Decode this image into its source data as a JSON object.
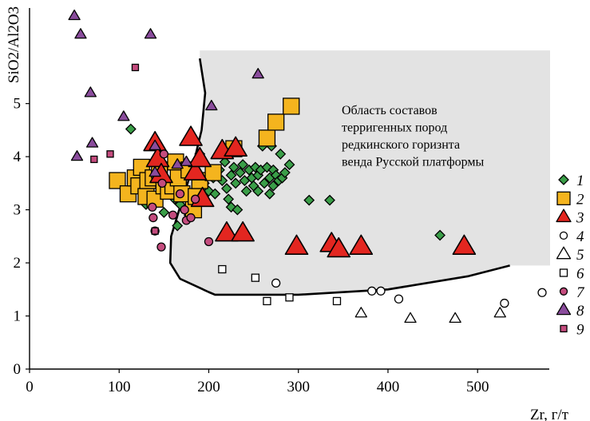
{
  "chart_data": {
    "type": "scatter",
    "title": "",
    "xlabel": "Zr, г/т",
    "ylabel": "SiO2/Al2O3",
    "xlim": [
      0,
      580
    ],
    "ylim": [
      0,
      6.8
    ],
    "x_ticks": [
      0,
      100,
      200,
      300,
      400,
      500
    ],
    "y_ticks": [
      0,
      1,
      2,
      3,
      4,
      5
    ],
    "grid": false,
    "legend_position": "right",
    "annotation": [
      "Область составов",
      "терригенных пород",
      "редкинского горизнта",
      "венда Русской платформы"
    ],
    "field": {
      "fill": "#e3e3e3",
      "rect": {
        "x": [
          190,
          585
        ],
        "y": [
          1.95,
          6.0
        ]
      },
      "boundary": [
        [
          190,
          5.85
        ],
        [
          196,
          5.2
        ],
        [
          192,
          4.5
        ],
        [
          182,
          3.8
        ],
        [
          167,
          3.0
        ],
        [
          158,
          2.5
        ],
        [
          157,
          2.0
        ],
        [
          168,
          1.7
        ],
        [
          200,
          1.45
        ],
        [
          207,
          1.4
        ],
        [
          300,
          1.4
        ],
        [
          400,
          1.5
        ],
        [
          490,
          1.75
        ],
        [
          536,
          1.95
        ]
      ]
    },
    "series": [
      {
        "name": "1",
        "marker": "diamond",
        "color": "#3a9e48",
        "size": 6,
        "points": [
          [
            113,
            4.52
          ],
          [
            143,
            3.6
          ],
          [
            148,
            3.85
          ],
          [
            150,
            2.95
          ],
          [
            160,
            3.35
          ],
          [
            162,
            3.2
          ],
          [
            165,
            2.7
          ],
          [
            168,
            3.1
          ],
          [
            170,
            3.65
          ],
          [
            175,
            3.85
          ],
          [
            178,
            2.9
          ],
          [
            180,
            3.75
          ],
          [
            180,
            3.2
          ],
          [
            188,
            3.95
          ],
          [
            190,
            4.05
          ],
          [
            195,
            3.5
          ],
          [
            200,
            3.35
          ],
          [
            205,
            3.6
          ],
          [
            207,
            3.3
          ],
          [
            212,
            3.75
          ],
          [
            215,
            3.55
          ],
          [
            218,
            3.9
          ],
          [
            220,
            3.4
          ],
          [
            222,
            3.2
          ],
          [
            225,
            3.65
          ],
          [
            225,
            3.05
          ],
          [
            228,
            3.8
          ],
          [
            230,
            3.5
          ],
          [
            232,
            3.0
          ],
          [
            235,
            3.7
          ],
          [
            238,
            3.85
          ],
          [
            240,
            3.55
          ],
          [
            242,
            3.35
          ],
          [
            245,
            3.75
          ],
          [
            248,
            3.6
          ],
          [
            250,
            3.45
          ],
          [
            252,
            3.8
          ],
          [
            255,
            3.65
          ],
          [
            255,
            3.35
          ],
          [
            258,
            3.75
          ],
          [
            260,
            4.2
          ],
          [
            262,
            3.5
          ],
          [
            265,
            3.8
          ],
          [
            268,
            3.6
          ],
          [
            268,
            3.3
          ],
          [
            270,
            4.2
          ],
          [
            272,
            3.75
          ],
          [
            272,
            3.45
          ],
          [
            275,
            3.65
          ],
          [
            278,
            3.55
          ],
          [
            280,
            4.05
          ],
          [
            282,
            3.6
          ],
          [
            285,
            3.7
          ],
          [
            290,
            3.85
          ],
          [
            312,
            3.18
          ],
          [
            335,
            3.18
          ],
          [
            458,
            2.52
          ],
          [
            130,
            3.1
          ],
          [
            138,
            3.25
          ]
        ]
      },
      {
        "name": "2",
        "marker": "square",
        "color": "#f4b41e",
        "size": 10,
        "points": [
          [
            98,
            3.55
          ],
          [
            110,
            3.3
          ],
          [
            118,
            3.6
          ],
          [
            122,
            3.45
          ],
          [
            125,
            3.8
          ],
          [
            130,
            3.25
          ],
          [
            132,
            3.55
          ],
          [
            138,
            3.6
          ],
          [
            140,
            3.2
          ],
          [
            145,
            3.75
          ],
          [
            150,
            3.45
          ],
          [
            155,
            3.35
          ],
          [
            160,
            3.45
          ],
          [
            163,
            3.9
          ],
          [
            166,
            3.6
          ],
          [
            170,
            3.3
          ],
          [
            178,
            3.75
          ],
          [
            183,
            3.0
          ],
          [
            186,
            3.25
          ],
          [
            190,
            3.55
          ],
          [
            205,
            3.7
          ],
          [
            228,
            4.15
          ],
          [
            265,
            4.35
          ],
          [
            275,
            4.65
          ],
          [
            292,
            4.95
          ]
        ]
      },
      {
        "name": "3",
        "marker": "triangle",
        "color": "#e32620",
        "size": 14,
        "points": [
          [
            140,
            4.25
          ],
          [
            143,
            3.95
          ],
          [
            147,
            3.65
          ],
          [
            180,
            4.35
          ],
          [
            185,
            3.7
          ],
          [
            190,
            3.95
          ],
          [
            193,
            3.2
          ],
          [
            215,
            4.1
          ],
          [
            220,
            2.55
          ],
          [
            230,
            4.15
          ],
          [
            238,
            2.55
          ],
          [
            298,
            2.3
          ],
          [
            337,
            2.35
          ],
          [
            345,
            2.25
          ],
          [
            370,
            2.3
          ],
          [
            485,
            2.3
          ]
        ]
      },
      {
        "name": "4",
        "marker": "circle",
        "color": "#ffffff",
        "size": 5,
        "points": [
          [
            275,
            1.62
          ],
          [
            382,
            1.47
          ],
          [
            392,
            1.47
          ],
          [
            412,
            1.32
          ],
          [
            530,
            1.24
          ],
          [
            572,
            1.44
          ]
        ]
      },
      {
        "name": "5",
        "marker": "triangle",
        "color": "#ffffff",
        "size": 7,
        "points": [
          [
            370,
            1.05
          ],
          [
            425,
            0.95
          ],
          [
            475,
            0.95
          ],
          [
            525,
            1.05
          ]
        ]
      },
      {
        "name": "6",
        "marker": "square",
        "color": "#ffffff",
        "size": 4.5,
        "points": [
          [
            215,
            1.88
          ],
          [
            252,
            1.72
          ],
          [
            265,
            1.28
          ],
          [
            290,
            1.35
          ],
          [
            343,
            1.28
          ]
        ]
      },
      {
        "name": "7",
        "marker": "circle",
        "color": "#c44c7e",
        "size": 5,
        "points": [
          [
            137,
            3.05
          ],
          [
            138,
            2.85
          ],
          [
            140,
            2.6
          ],
          [
            147,
            2.3
          ],
          [
            148,
            3.5
          ],
          [
            150,
            4.05
          ],
          [
            168,
            3.3
          ],
          [
            173,
            3.0
          ],
          [
            175,
            2.8
          ],
          [
            180,
            2.85
          ],
          [
            200,
            2.4
          ],
          [
            185,
            3.2
          ],
          [
            160,
            2.9
          ]
        ]
      },
      {
        "name": "8",
        "marker": "triangle",
        "color": "#8a4c9c",
        "size": 7,
        "points": [
          [
            50,
            6.65
          ],
          [
            57,
            6.3
          ],
          [
            53,
            4.0
          ],
          [
            68,
            5.2
          ],
          [
            70,
            4.25
          ],
          [
            105,
            4.75
          ],
          [
            135,
            6.3
          ],
          [
            140,
            3.7
          ],
          [
            140,
            4.2
          ],
          [
            165,
            3.85
          ],
          [
            175,
            3.9
          ],
          [
            203,
            4.95
          ],
          [
            255,
            5.55
          ]
        ]
      },
      {
        "name": "9",
        "marker": "square",
        "color": "#c44c7e",
        "size": 4,
        "points": [
          [
            72,
            3.95
          ],
          [
            90,
            4.05
          ],
          [
            118,
            5.68
          ],
          [
            140,
            2.6
          ]
        ]
      }
    ]
  }
}
